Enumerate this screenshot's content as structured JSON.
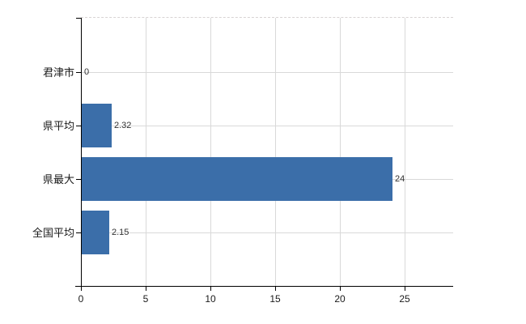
{
  "chart_data": {
    "type": "bar",
    "orientation": "horizontal",
    "title": "",
    "xlabel": "",
    "ylabel": "",
    "categories": [
      "君津市",
      "県平均",
      "県最大",
      "全国平均"
    ],
    "values": [
      0,
      2.32,
      24,
      2.15
    ],
    "value_labels": [
      "0",
      "2.32",
      "24",
      "2.15"
    ],
    "x_ticks": [
      0,
      5,
      10,
      15,
      20,
      25
    ],
    "x_tick_labels": [
      "0",
      "5",
      "10",
      "15",
      "20",
      "25"
    ],
    "xlim": [
      0,
      28.75
    ],
    "grid": true,
    "legend_position": "none",
    "colors": {
      "bar": "#3b6ea9",
      "axis": "#000000",
      "gridline": "#d9d9d9",
      "top_border": "#d8d4d4",
      "category_label": "#1a1a1a",
      "value_label": "#333333",
      "tick_label": "#1a1a1a",
      "background": "#ffffff"
    }
  }
}
